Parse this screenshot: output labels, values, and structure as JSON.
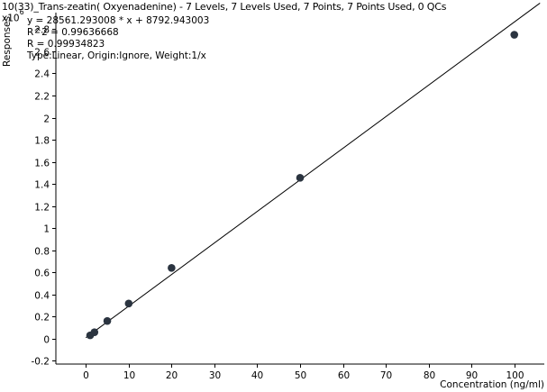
{
  "chart_data": {
    "type": "scatter",
    "title": "10(33)_Trans-zeatin( Oxyenadenine) - 7 Levels, 7 Levels Used, 7 Points, 7 Points Used, 0 QCs",
    "equation": "y = 28561.293008 * x + 8792.943003",
    "r_squared": "R^2 = 0.99636668",
    "r": "R = 0.99934823",
    "fit_info": "Type:Linear, Origin:Ignore, Weight:1/x",
    "ylabel": "Responses",
    "y_multiplier": "x10",
    "y_exponent": "6",
    "xlabel": "Concentration (ng/ml)",
    "xlim": [
      -7,
      107
    ],
    "ylim": [
      -0.23,
      2.95
    ],
    "x_ticks": [
      0,
      10,
      20,
      30,
      40,
      50,
      60,
      70,
      80,
      90,
      100
    ],
    "y_ticks": [
      -0.2,
      0,
      0.2,
      0.4,
      0.6,
      0.8,
      1,
      1.2,
      1.4,
      1.6,
      1.8,
      2,
      2.2,
      2.4,
      2.6,
      2.8
    ],
    "y_tick_labels": [
      "-0.2",
      "0",
      "0.2",
      "0.4",
      "0.6",
      "0.8",
      "1",
      "1.2",
      "1.4",
      "1.6",
      "1.8",
      "2",
      "2.2",
      "2.4",
      "2.6",
      "2.8"
    ],
    "points": [
      {
        "x": 1,
        "y": 0.03
      },
      {
        "x": 2,
        "y": 0.058
      },
      {
        "x": 5,
        "y": 0.16
      },
      {
        "x": 10,
        "y": 0.318
      },
      {
        "x": 20,
        "y": 0.64
      },
      {
        "x": 50,
        "y": 1.455
      },
      {
        "x": 100,
        "y": 2.75
      }
    ],
    "fit_line": {
      "slope": 0.028561293008,
      "intercept": 0.008792943003,
      "x_start": 0,
      "x_end": 106
    },
    "colors": {
      "points": "#2b3440",
      "line": "#000000"
    }
  }
}
